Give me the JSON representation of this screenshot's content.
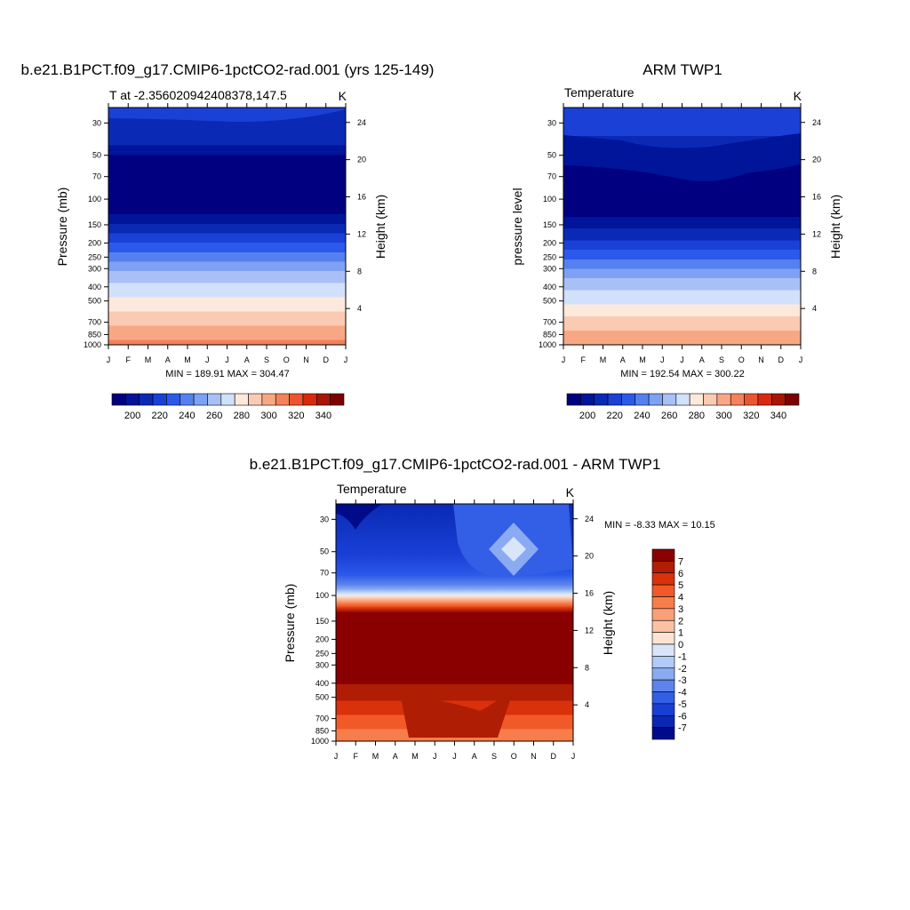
{
  "panels": [
    {
      "title": "b.e21.B1PCT.f09_g17.CMIP6-1pctCO2-rad.001 (yrs 125-149)",
      "left_string": "T at -2.356020942408378,147.5",
      "units": "K",
      "ylabel_left": "Pressure (mb)",
      "ylabel_right": "Height (km)",
      "stats": "MIN = 189.91 MAX = 304.47"
    },
    {
      "title": "ARM TWP1",
      "left_string": "Temperature",
      "units": "K",
      "ylabel_left": "pressure level",
      "ylabel_right": "Height (km)",
      "stats": "MIN = 192.54 MAX = 300.22"
    },
    {
      "title": "b.e21.B1PCT.f09_g17.CMIP6-1pctCO2-rad.001 - ARM TWP1",
      "left_string": "Temperature",
      "units": "K",
      "ylabel_left": "Pressure (mb)",
      "ylabel_right": "Height (km)",
      "stats": "MIN =  -8.33 MAX =  10.15"
    }
  ],
  "chart_data": [
    {
      "type": "heatmap",
      "title": "b.e21.B1PCT.f09_g17.CMIP6-1pctCO2-rad.001 (yrs 125-149)",
      "x": [
        "J",
        "F",
        "M",
        "A",
        "M",
        "J",
        "J",
        "A",
        "S",
        "O",
        "N",
        "D",
        "J"
      ],
      "pressure_ticks": [
        30,
        50,
        70,
        100,
        150,
        200,
        250,
        300,
        400,
        500,
        700,
        850,
        1000
      ],
      "height_ticks": [
        4,
        8,
        12,
        16,
        20,
        24
      ],
      "colorbar": {
        "orientation": "horizontal",
        "levels": [
          195,
          200,
          205,
          210,
          215,
          220,
          225,
          230,
          235,
          240,
          245,
          250,
          255,
          260,
          265,
          270,
          275,
          280,
          285,
          290,
          295,
          300,
          305,
          310,
          315,
          320,
          325,
          330,
          335,
          340,
          345
        ],
        "labels": [
          "200",
          "220",
          "240",
          "260",
          "280",
          "300",
          "320",
          "340"
        ]
      },
      "colors": [
        "#000080",
        "#001599",
        "#0a2ab5",
        "#1a40d6",
        "#2b5aea",
        "#5580ef",
        "#7fa1f3",
        "#a9c0f6",
        "#d2e1fb",
        "#fde9dc",
        "#fbcab2",
        "#f8a784",
        "#f4815a",
        "#ec5530",
        "#d92a10",
        "#a81505",
        "#7c0000"
      ]
    },
    {
      "type": "heatmap",
      "title": "ARM TWP1",
      "x": [
        "J",
        "F",
        "M",
        "A",
        "M",
        "J",
        "J",
        "A",
        "S",
        "O",
        "N",
        "D",
        "J"
      ],
      "pressure_ticks": [
        30,
        50,
        70,
        100,
        150,
        200,
        250,
        300,
        400,
        500,
        700,
        850,
        1000
      ],
      "height_ticks": [
        4,
        8,
        12,
        16,
        20,
        24
      ],
      "colorbar": {
        "orientation": "horizontal",
        "labels": [
          "200",
          "220",
          "240",
          "260",
          "280",
          "300",
          "320",
          "340"
        ]
      }
    },
    {
      "type": "heatmap",
      "title": "b.e21.B1PCT.f09_g17.CMIP6-1pctCO2-rad.001 - ARM TWP1",
      "x": [
        "J",
        "F",
        "M",
        "A",
        "M",
        "J",
        "J",
        "A",
        "S",
        "O",
        "N",
        "D",
        "J"
      ],
      "pressure_ticks": [
        30,
        50,
        70,
        100,
        150,
        200,
        250,
        300,
        400,
        500,
        700,
        850,
        1000
      ],
      "height_ticks": [
        4,
        8,
        12,
        16,
        20,
        24
      ],
      "colorbar": {
        "orientation": "vertical",
        "labels": [
          "7",
          "6",
          "5",
          "4",
          "3",
          "2",
          "1",
          "0",
          "-1",
          "-2",
          "-3",
          "-4",
          "-5",
          "-6",
          "-7"
        ]
      },
      "colors": [
        "#8a0000",
        "#b01d05",
        "#d9310c",
        "#f15a28",
        "#f77d4a",
        "#f9a078",
        "#fbc1a3",
        "#fde3d2",
        "#d9e6fa",
        "#b2cbf6",
        "#8aabf2",
        "#5d84ed",
        "#335ee6",
        "#1a3fd4",
        "#0a28b4",
        "#000b8a"
      ]
    }
  ]
}
